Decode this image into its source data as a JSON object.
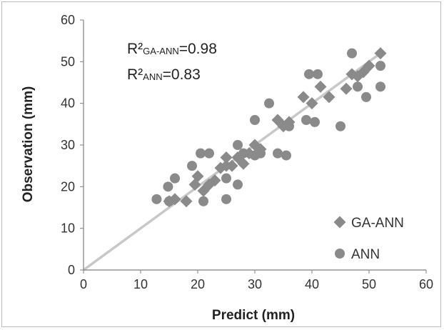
{
  "chart_data": {
    "type": "scatter",
    "xlabel": "Predict (mm)",
    "ylabel": "Observation (mm)",
    "xlim": [
      0,
      60
    ],
    "ylim": [
      0,
      60
    ],
    "x_ticks": [
      0,
      10,
      20,
      30,
      40,
      50,
      60
    ],
    "y_ticks": [
      0,
      10,
      20,
      30,
      40,
      50,
      60
    ],
    "grid": false,
    "legend_position": "bottom-right",
    "annotations": [
      {
        "prefix": "R²",
        "subscript": "GA-ANN",
        "suffix": "=0.98"
      },
      {
        "prefix": "R²",
        "subscript": "ANN",
        "suffix": "=0.83"
      }
    ],
    "reference_line": {
      "x": [
        0,
        52
      ],
      "y": [
        0,
        52
      ],
      "color": "#c8c8c8"
    },
    "series": [
      {
        "name": "GA-ANN",
        "marker": "diamond",
        "color": "#8a8a8a",
        "x": [
          15,
          16,
          18,
          19.5,
          20,
          21,
          22,
          23,
          24,
          25,
          25,
          26,
          27,
          28,
          29,
          30,
          31,
          34,
          35,
          36,
          38.5,
          40,
          41.5,
          43,
          46,
          47,
          48,
          49,
          50,
          52
        ],
        "y": [
          16.5,
          17,
          16.5,
          20.5,
          22.5,
          19,
          20.5,
          21.5,
          24.5,
          25,
          27,
          25,
          27,
          25.5,
          28,
          30,
          29,
          36,
          34.5,
          35.5,
          41.5,
          40,
          44,
          41.5,
          43.5,
          47,
          46.5,
          47.5,
          49,
          52
        ]
      },
      {
        "name": "ANN",
        "marker": "circle",
        "color": "#8a8a8a",
        "x": [
          12.8,
          14.8,
          15,
          16,
          19,
          20.5,
          21,
          22,
          25,
          25,
          27,
          27,
          28,
          30,
          30,
          31,
          32.5,
          34,
          35.5,
          36,
          39,
          39.5,
          40.5,
          41,
          45,
          47,
          48,
          49.5,
          52,
          52
        ],
        "y": [
          17,
          20,
          16.5,
          22,
          25,
          28,
          16.5,
          28,
          22,
          17,
          20.5,
          30,
          28,
          36,
          27.5,
          28,
          40,
          28,
          27.5,
          34.5,
          36,
          47,
          35.5,
          47,
          34.5,
          52,
          44,
          41.5,
          44,
          49
        ]
      }
    ]
  }
}
